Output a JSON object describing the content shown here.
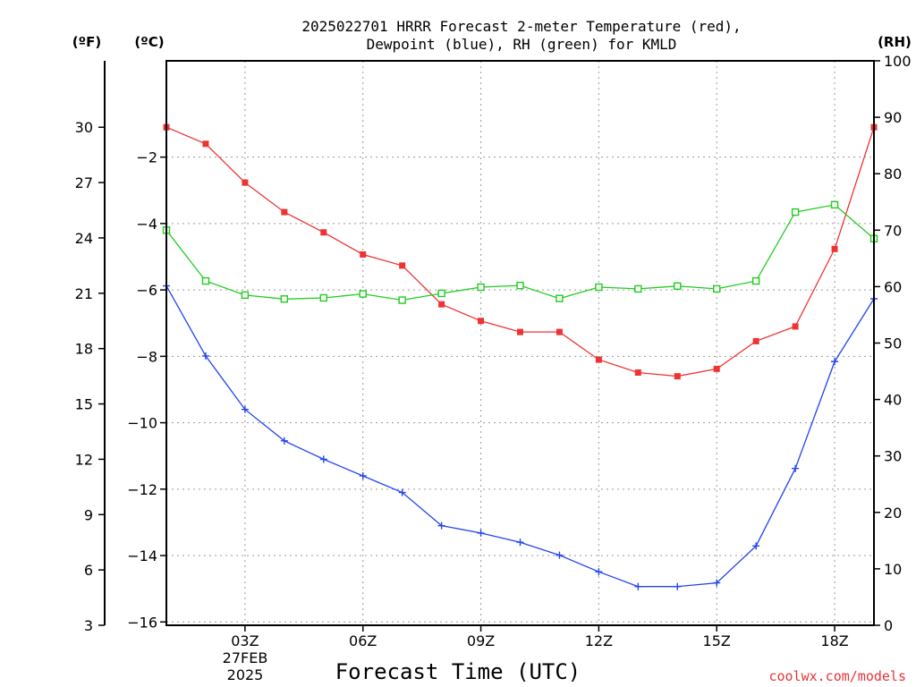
{
  "chart_data": {
    "type": "line",
    "title_line1": "2025022701 HRRR Forecast 2-meter Temperature (red),",
    "title_line2": "Dewpoint (blue), RH (green) for KMLD",
    "xlabel": "Forecast Time (UTC)",
    "credit": "coolwx.com/models",
    "unit_left_f": "(ºF)",
    "unit_left_c": "(ºC)",
    "unit_right": "(RH)",
    "date_line1": "27FEB",
    "date_line2": "2025",
    "x_hours": [
      1,
      2,
      3,
      4,
      5,
      6,
      7,
      8,
      9,
      10,
      11,
      12,
      13,
      14,
      15,
      16,
      17,
      18,
      19
    ],
    "x_ticks": [
      {
        "h": 3,
        "label": "03Z"
      },
      {
        "h": 6,
        "label": "06Z"
      },
      {
        "h": 9,
        "label": "09Z"
      },
      {
        "h": 12,
        "label": "12Z"
      },
      {
        "h": 15,
        "label": "15Z"
      },
      {
        "h": 18,
        "label": "18Z"
      }
    ],
    "xlim": [
      1,
      19
    ],
    "ylim_c": [
      -16.1,
      0.9
    ],
    "ylim_f": [
      3.0,
      33.6
    ],
    "ylim_rh": [
      0,
      100
    ],
    "yticks_c": [
      "−16",
      "−14",
      "−12",
      "−10",
      "−8",
      "−6",
      "−4",
      "−2"
    ],
    "yticks_c_values": [
      -16,
      -14,
      -12,
      -10,
      -8,
      -6,
      -4,
      -2
    ],
    "yticks_f": [
      "3",
      "6",
      "9",
      "12",
      "15",
      "18",
      "21",
      "24",
      "27",
      "30"
    ],
    "yticks_f_values": [
      3,
      6,
      9,
      12,
      15,
      18,
      21,
      24,
      27,
      30
    ],
    "yticks_rh": [
      "0",
      "10",
      "20",
      "30",
      "40",
      "50",
      "60",
      "70",
      "80",
      "90",
      "100"
    ],
    "yticks_rh_values": [
      0,
      10,
      20,
      30,
      40,
      50,
      60,
      70,
      80,
      90,
      100
    ],
    "grid": true,
    "series": [
      {
        "name": "Temperature",
        "color": "#ee3333",
        "marker": "filled-square",
        "axis": "F",
        "values": [
          30.0,
          29.1,
          27.0,
          25.4,
          24.3,
          23.1,
          22.5,
          20.4,
          19.5,
          18.9,
          18.9,
          17.4,
          16.7,
          16.5,
          16.9,
          18.4,
          19.2,
          23.4,
          30.0
        ]
      },
      {
        "name": "Dewpoint",
        "color": "#2244ee",
        "marker": "plus",
        "axis": "F",
        "values": [
          21.4,
          17.6,
          14.7,
          13.0,
          12.0,
          11.1,
          10.2,
          8.4,
          8.0,
          7.5,
          6.8,
          5.9,
          5.1,
          5.1,
          5.3,
          7.3,
          11.5,
          17.3,
          20.7
        ]
      },
      {
        "name": "RH",
        "color": "#22cc22",
        "marker": "open-square",
        "axis": "RH",
        "values": [
          70.0,
          61.0,
          58.5,
          57.8,
          58.0,
          58.7,
          57.6,
          58.8,
          59.9,
          60.2,
          57.9,
          59.9,
          59.6,
          60.1,
          59.6,
          61.0,
          73.2,
          74.5,
          68.5
        ]
      }
    ]
  }
}
